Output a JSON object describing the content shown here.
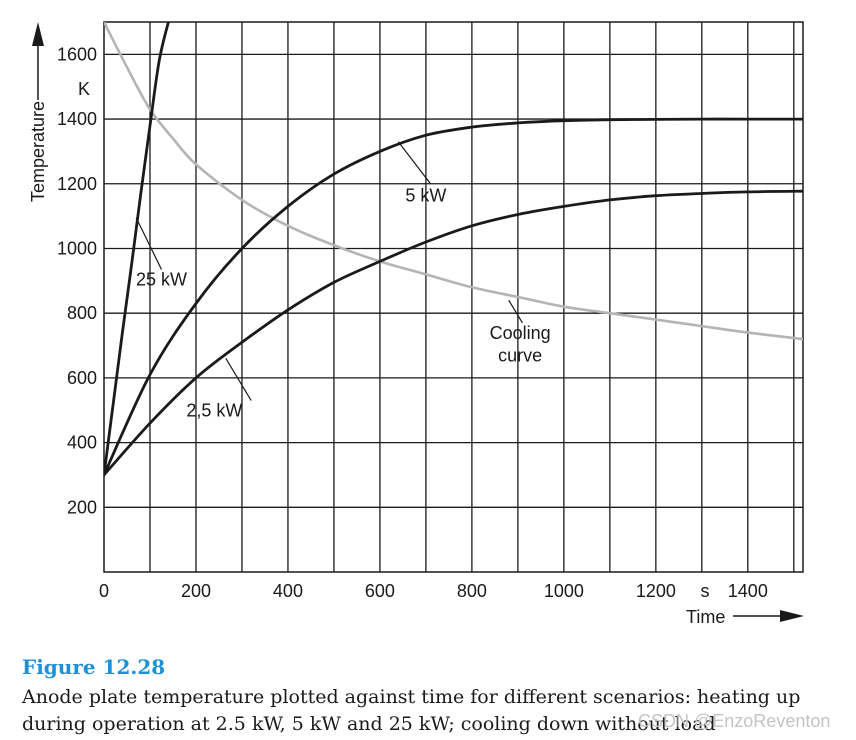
{
  "chart_data": {
    "type": "line",
    "title": "",
    "xlabel": "Time",
    "xunit": "s",
    "ylabel": "Temperature",
    "yunit": "K",
    "xlim": [
      0,
      1520
    ],
    "ylim": [
      0,
      1700
    ],
    "xticks": [
      0,
      200,
      400,
      600,
      800,
      1000,
      1200,
      1400
    ],
    "yticks": [
      200,
      400,
      600,
      800,
      1000,
      1200,
      1400,
      1600
    ],
    "grid": true,
    "series": [
      {
        "name": "25 kW",
        "color": "#1a1a1a",
        "x": [
          0,
          20,
          40,
          60,
          80,
          100,
          120,
          140
        ],
        "y": [
          300,
          520,
          740,
          950,
          1170,
          1380,
          1580,
          1700
        ]
      },
      {
        "name": "5 kW",
        "color": "#1a1a1a",
        "x": [
          0,
          100,
          200,
          300,
          400,
          500,
          600,
          700,
          800,
          900,
          1000,
          1100,
          1200,
          1300,
          1400,
          1520
        ],
        "y": [
          300,
          610,
          830,
          1000,
          1130,
          1230,
          1300,
          1350,
          1375,
          1388,
          1395,
          1398,
          1399,
          1400,
          1400,
          1400
        ]
      },
      {
        "name": "2,5 kW",
        "color": "#1a1a1a",
        "x": [
          0,
          100,
          200,
          300,
          400,
          500,
          600,
          700,
          800,
          900,
          1000,
          1100,
          1200,
          1300,
          1400,
          1520
        ],
        "y": [
          300,
          460,
          600,
          710,
          810,
          895,
          960,
          1020,
          1070,
          1105,
          1130,
          1150,
          1163,
          1170,
          1175,
          1177
        ]
      },
      {
        "name": "Cooling curve",
        "color": "#b4b4b4",
        "x": [
          0,
          50,
          100,
          150,
          200,
          300,
          400,
          500,
          600,
          700,
          800,
          900,
          1000,
          1100,
          1200,
          1300,
          1400,
          1520
        ],
        "y": [
          1700,
          1560,
          1430,
          1340,
          1260,
          1150,
          1070,
          1010,
          960,
          920,
          880,
          850,
          820,
          800,
          780,
          760,
          740,
          720
        ]
      }
    ],
    "annotations": [
      {
        "text": "25 kW",
        "x": 125,
        "y": 885
      },
      {
        "text": "5 kW",
        "x": 700,
        "y": 1145
      },
      {
        "text": "2,5 kW",
        "x": 240,
        "y": 480
      },
      {
        "text": "Cooling",
        "x": 905,
        "y": 720
      },
      {
        "text": "curve",
        "x": 905,
        "y": 650
      }
    ]
  },
  "caption": {
    "title": "Figure 12.28",
    "text": "Anode plate temperature plotted against time for different scenarios: heating up during operation at 2.5 kW, 5 kW and 25 kW; cooling down without load"
  },
  "watermark": "CSDN @EnzoReventon"
}
